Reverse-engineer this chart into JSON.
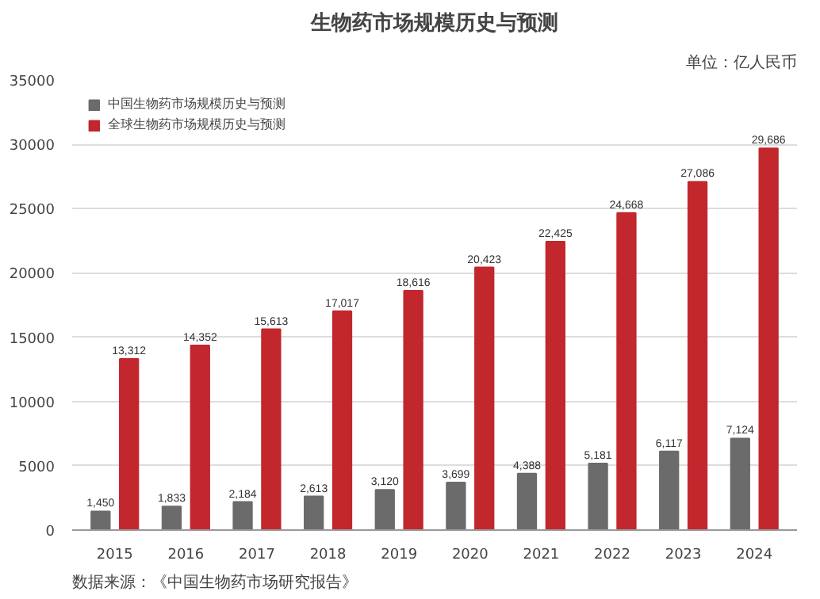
{
  "chart_data": {
    "type": "bar",
    "title": "生物药市场规模历史与预测",
    "annotations": [
      "单位：亿人民币",
      "数据来源：《中国生物药市场研究报告》"
    ],
    "categories": [
      "2015",
      "2016",
      "2017",
      "2018",
      "2019",
      "2020",
      "2021",
      "2022",
      "2023",
      "2024"
    ],
    "series": [
      {
        "name": "中国生物药市场规模历史与预测",
        "color": "#6b6b6b",
        "values": [
          1450,
          1833,
          2184,
          2613,
          3120,
          3699,
          4388,
          5181,
          6117,
          7124
        ],
        "value_labels": [
          "1,450",
          "1,833",
          "2,184",
          "2,613",
          "3,120",
          "3,699",
          "4,388",
          "5,181",
          "6,117",
          "7,124"
        ]
      },
      {
        "name": "全球生物药市场规模历史与预测",
        "color": "#c1272d",
        "values": [
          13312,
          14352,
          15613,
          17017,
          18616,
          20423,
          22425,
          24668,
          27086,
          29686
        ],
        "value_labels": [
          "13,312",
          "14,352",
          "15,613",
          "17,017",
          "18,616",
          "20,423",
          "22,425",
          "24,668",
          "27,086",
          "29,686"
        ]
      }
    ],
    "ylim": [
      0,
      35000
    ],
    "yticks": [
      0,
      5000,
      10000,
      15000,
      20000,
      25000,
      30000,
      35000
    ],
    "grid": "y",
    "legend": "top left"
  }
}
